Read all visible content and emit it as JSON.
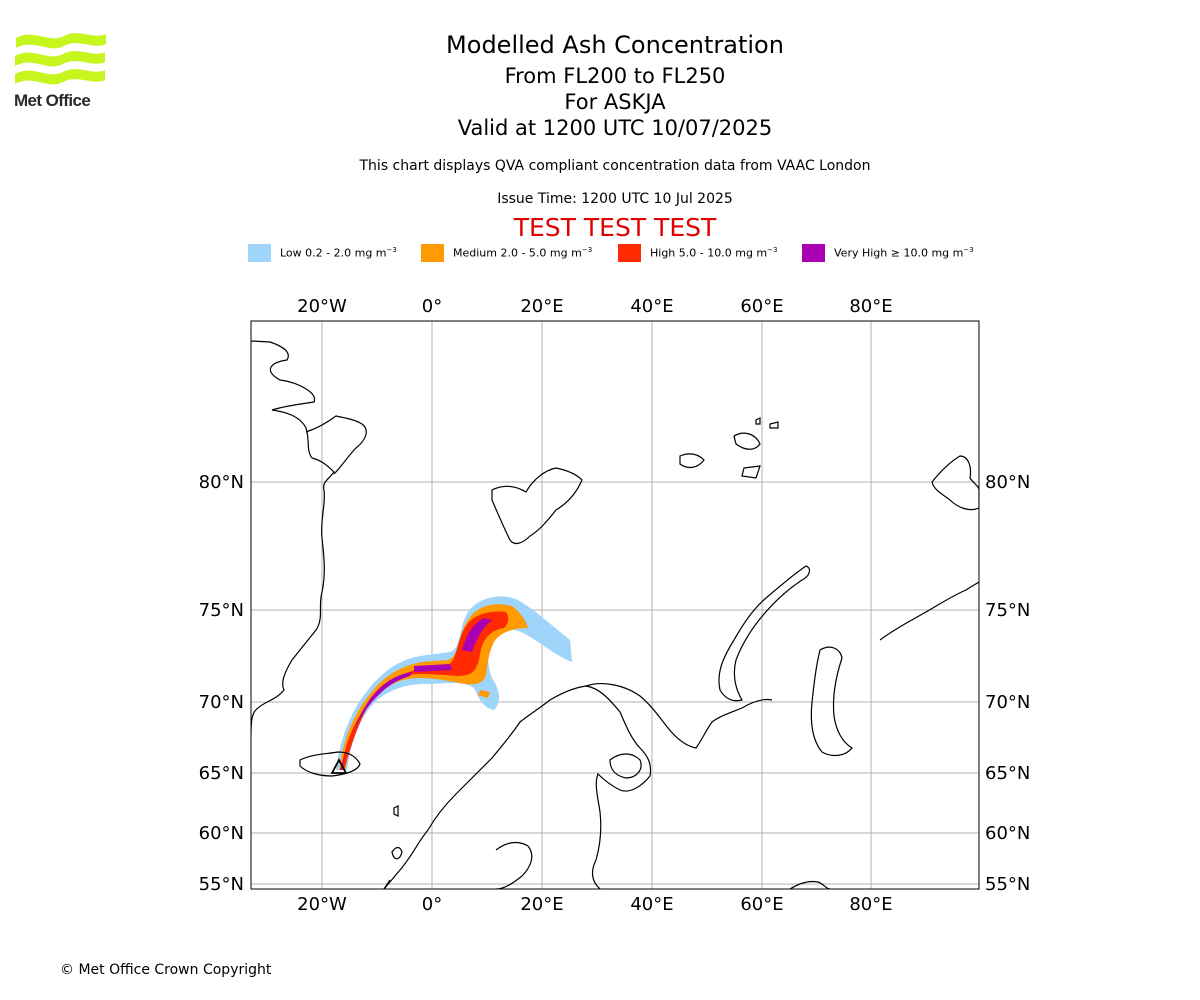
{
  "header": {
    "logo_text": "Met Office",
    "title": "Modelled Ash Concentration",
    "level_range": "From FL200 to FL250",
    "volcano": "For ASKJA",
    "valid_time": "Valid at 1200 UTC 10/07/2025",
    "compliance_note": "This chart displays QVA compliant concentration data from VAAC London",
    "issue_time": "Issue Time: 1200 UTC 10 Jul 2025",
    "test_banner": "TEST TEST TEST"
  },
  "legend": [
    {
      "name": "Low",
      "text": "Low 0.2 - 2.0 mg m",
      "exp": "−3",
      "color": "#9fd4fb"
    },
    {
      "name": "Medium",
      "text": "Medium 2.0 - 5.0 mg m",
      "exp": "−3",
      "color": "#ff9a00"
    },
    {
      "name": "High",
      "text": "High 5.0 - 10.0 mg m",
      "exp": "−3",
      "color": "#ff2a00"
    },
    {
      "name": "Very High",
      "text": "Very High  ≥  10.0 mg m",
      "exp": "−3",
      "color": "#aa00b4"
    }
  ],
  "map": {
    "lon_labels": [
      "20°W",
      "0°",
      "20°E",
      "40°E",
      "60°E",
      "80°E"
    ],
    "lat_labels": [
      "80°N",
      "75°N",
      "70°N",
      "65°N",
      "60°N",
      "55°N"
    ],
    "volcano_marker": "triangle",
    "volcano_name": "ASKJA"
  },
  "footer": {
    "copyright": "© Met Office Crown Copyright"
  }
}
